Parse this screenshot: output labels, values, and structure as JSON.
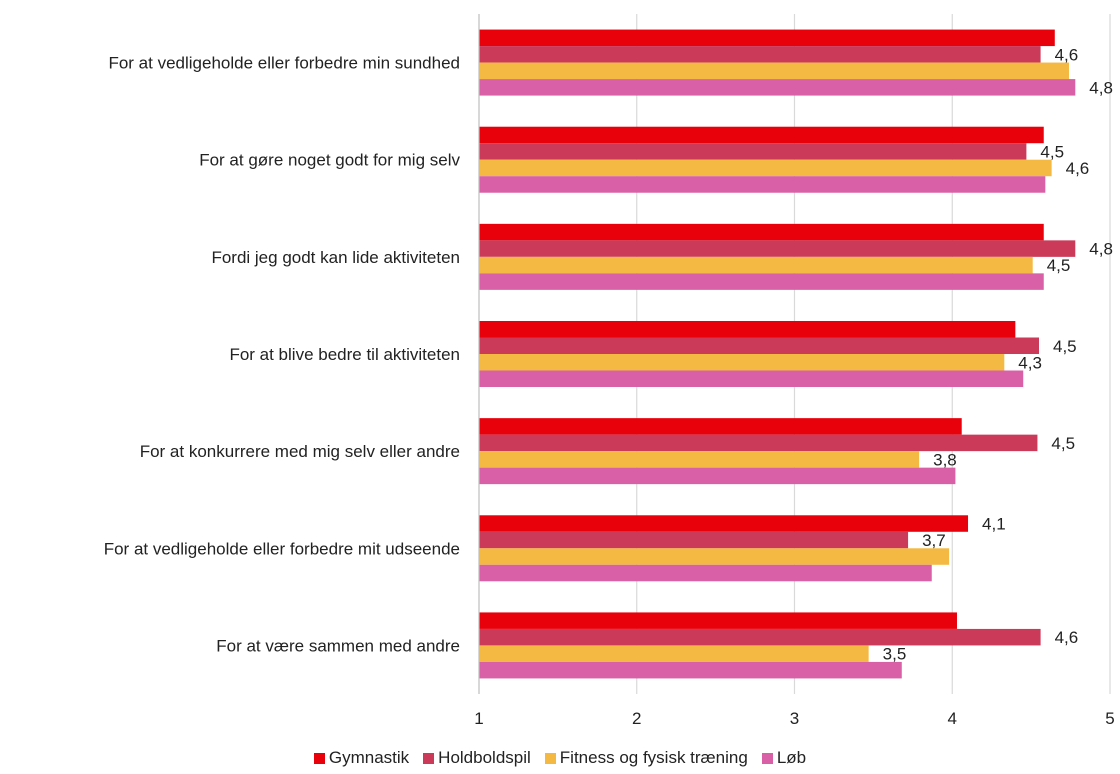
{
  "chart_data": {
    "type": "bar",
    "orientation": "horizontal",
    "categories": [
      "For at vedligeholde eller forbedre min sundhed",
      "For at gøre noget godt for mig selv",
      "Fordi jeg godt kan lide aktiviteten",
      "For at blive bedre til aktiviteten",
      "For at konkurrere med mig selv eller andre",
      "For at vedligeholde eller forbedre mit udseende",
      "For at være sammen med andre"
    ],
    "series": [
      {
        "name": "Gymnastik",
        "color": "#e8000b",
        "values": [
          4.65,
          4.58,
          4.58,
          4.4,
          4.06,
          4.1,
          4.03
        ],
        "labels": [
          "",
          "",
          "",
          "",
          "",
          "4,1",
          ""
        ]
      },
      {
        "name": "Holdboldspil",
        "color": "#cc3a5a",
        "values": [
          4.56,
          4.47,
          4.78,
          4.55,
          4.54,
          3.72,
          4.56
        ],
        "labels": [
          "4,6",
          "4,5",
          "4,8",
          "4,5",
          "4,5",
          "3,7",
          "4,6"
        ]
      },
      {
        "name": "Fitness og fysisk træning",
        "color": "#f4b942",
        "values": [
          4.74,
          4.63,
          4.51,
          4.33,
          3.79,
          3.98,
          3.47
        ],
        "labels": [
          "",
          "4,6",
          "4,5",
          "4,3",
          "3,8",
          "",
          "3,5"
        ]
      },
      {
        "name": "Løb",
        "color": "#d95fa7",
        "values": [
          4.78,
          4.59,
          4.58,
          4.45,
          4.02,
          3.87,
          3.68
        ],
        "labels": [
          "4,8",
          "",
          "",
          "",
          "",
          "",
          ""
        ]
      }
    ],
    "xlim": [
      1,
      5
    ],
    "xticks": [
      "1",
      "2",
      "3",
      "4",
      "5"
    ],
    "grid": "vertical",
    "legend_position": "bottom",
    "gridline_color": "#d9d9d9",
    "axis_color": "#bfbfbf"
  }
}
